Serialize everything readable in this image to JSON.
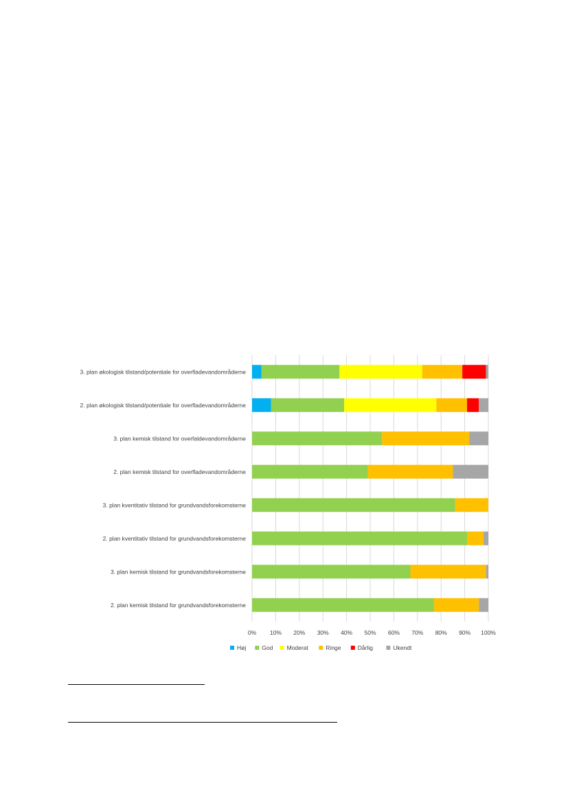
{
  "colors": {
    "Høj": "#00b0f0",
    "God": "#92d050",
    "Moderat": "#ffff00",
    "Ringe": "#ffc000",
    "Dårlig": "#ff0000",
    "Ukendt": "#a6a6a6",
    "grid": "#d9d9d9"
  },
  "chart_data": {
    "type": "bar",
    "orientation": "horizontal",
    "stacked": true,
    "percent": true,
    "categories": [
      "3. plan økologisk tilstand/potentiale for overfladevandområderne",
      "2. plan økologisk tilstand/potentiale for overfladevandområderne",
      "3. plan kemisk tilstand for overfaldevandområderne",
      "2. plan kemisk tilstand for overfladevandområderne",
      "3. plan kventitativ tilstand for grundvandsforekomsterne",
      "2. plan kventitativ tilstand for grundvandsforekomsterne",
      "3. plan kemisk tilstand for grundvandsforekomsterne",
      "2. plan kemisk tilstand for grundvandsforekomsterne"
    ],
    "series": [
      {
        "name": "Høj",
        "values": [
          4,
          8,
          0,
          0,
          0,
          0,
          0,
          0
        ]
      },
      {
        "name": "God",
        "values": [
          33,
          31,
          55,
          49,
          86,
          91,
          67,
          77
        ]
      },
      {
        "name": "Moderat",
        "values": [
          35,
          39,
          0,
          0,
          0,
          0,
          0,
          0
        ]
      },
      {
        "name": "Ringe",
        "values": [
          17,
          13,
          37,
          36,
          14,
          7,
          32,
          19
        ]
      },
      {
        "name": "Dårlig",
        "values": [
          10,
          5,
          0,
          0,
          0,
          0,
          0,
          0
        ]
      },
      {
        "name": "Ukendt",
        "values": [
          1,
          4,
          8,
          15,
          0,
          2,
          1,
          4
        ]
      }
    ],
    "xticks": [
      "0%",
      "10%",
      "20%",
      "30%",
      "40%",
      "50%",
      "60%",
      "70%",
      "80%",
      "90%",
      "100%"
    ],
    "xlim": [
      0,
      100
    ],
    "grid": true,
    "legend_position": "bottom"
  }
}
